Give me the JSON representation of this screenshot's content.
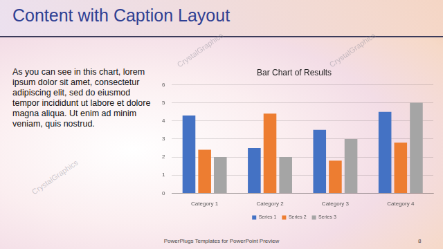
{
  "slide": {
    "title": "Content with Caption Layout",
    "caption": "As you can see in this chart, lorem ipsum dolor sit amet, consectetur adipiscing elit, sed do eiusmod tempor incididunt ut labore et dolore magna aliqua. Ut enim ad minim veniam, quis nostrud.",
    "footer": "PowerPlugs Templates for PowerPoint Preview",
    "page_number": "8",
    "watermark": "CrystalGraphics"
  },
  "chart_data": {
    "type": "bar",
    "title": "Bar Chart of Results",
    "categories": [
      "Category 1",
      "Category 2",
      "Category 3",
      "Category 4"
    ],
    "series": [
      {
        "name": "Series 1",
        "color": "#4472c4",
        "values": [
          4.3,
          2.5,
          3.5,
          4.5
        ]
      },
      {
        "name": "Series 2",
        "color": "#ed7d31",
        "values": [
          2.4,
          4.4,
          1.8,
          2.8
        ]
      },
      {
        "name": "Series 3",
        "color": "#a5a5a5",
        "values": [
          2,
          2,
          3,
          5
        ]
      }
    ],
    "ylim": [
      0,
      6
    ],
    "yticks": [
      0,
      1,
      2,
      3,
      4,
      5,
      6
    ],
    "grid": true,
    "legend": "bottom"
  }
}
